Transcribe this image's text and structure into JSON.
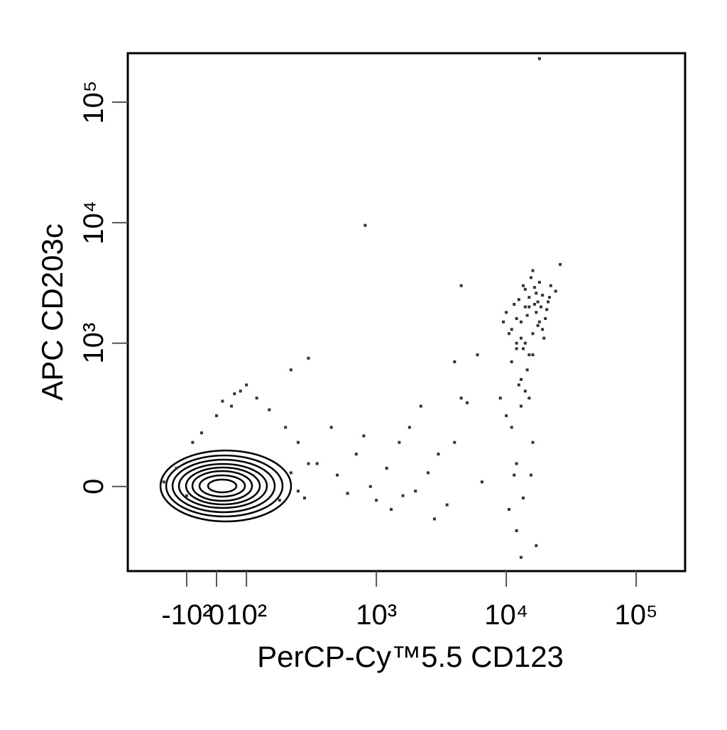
{
  "chart_data": {
    "type": "scatter",
    "x_label": "PerCP-Cy™5.5  CD123",
    "y_label": "APC  CD203c",
    "xscale": "biexponential",
    "yscale": "biexponential",
    "xlim": [
      -284,
      238000
    ],
    "ylim": [
      -325,
      255000
    ],
    "xticks": [
      {
        "value": -100,
        "label": "-10²"
      },
      0,
      {
        "value": 100,
        "label": "10²"
      },
      {
        "value": 1000,
        "label": "10³"
      },
      {
        "value": 10000,
        "label": "10⁴"
      },
      {
        "value": 100000,
        "label": "10⁵"
      }
    ],
    "yticks": [
      0,
      {
        "value": 1000,
        "label": "10³"
      },
      {
        "value": 10000,
        "label": "10⁴"
      },
      {
        "value": 100000,
        "label": "10⁵"
      }
    ],
    "color": "#333333",
    "x": [
      15000,
      17000,
      13000,
      19000,
      16000,
      12000,
      21000,
      14000,
      18000,
      11000,
      16500,
      20000,
      13500,
      17500,
      22000,
      10000,
      15500,
      19500,
      12500,
      24000,
      14500,
      18500,
      16000,
      26000,
      11500,
      17000,
      13000,
      15000,
      20500,
      9500,
      14000,
      18000,
      12000,
      16500,
      21500,
      10500,
      15000,
      19000,
      13500,
      17500,
      13000,
      11000,
      14000,
      12000,
      15000,
      10000,
      16000,
      11500,
      13500,
      12500,
      14500,
      10500,
      12000,
      15500,
      13000,
      11000,
      16000,
      9000,
      12000,
      14000,
      17000,
      13000,
      350,
      500,
      700,
      900,
      1200,
      1500,
      2000,
      2500,
      3000,
      1800,
      1000,
      600,
      2200,
      3500,
      4500,
      5000,
      6500,
      4000,
      800,
      1300,
      2800,
      450,
      1600,
      -150,
      -120,
      -80,
      -50,
      0,
      50,
      80,
      120,
      150,
      200,
      250,
      300,
      -100,
      180,
      250,
      100,
      60,
      20,
      220,
      280,
      820,
      18000,
      300,
      220,
      4500,
      4000,
      6000
    ],
    "y": [
      2000,
      1800,
      1500,
      2500,
      1200,
      1000,
      2200,
      2800,
      3200,
      1300,
      2100,
      1600,
      900,
      1400,
      3000,
      1800,
      3500,
      1100,
      2300,
      2700,
      1700,
      2000,
      4000,
      4500,
      2100,
      2600,
      1100,
      800,
      1900,
      1500,
      2000,
      1500,
      1600,
      2900,
      2400,
      1200,
      2400,
      1300,
      3000,
      2200,
      300,
      200,
      400,
      100,
      350,
      250,
      150,
      50,
      -50,
      450,
      600,
      -100,
      -150,
      50,
      500,
      700,
      800,
      350,
      900,
      1000,
      -200,
      -250,
      100,
      50,
      120,
      0,
      80,
      150,
      -20,
      60,
      120,
      200,
      -60,
      -30,
      300,
      -80,
      350,
      320,
      20,
      150,
      170,
      -100,
      -120,
      200,
      -40,
      20,
      80,
      150,
      180,
      250,
      300,
      400,
      350,
      280,
      200,
      150,
      100,
      -40,
      -60,
      -20,
      450,
      380,
      330,
      60,
      -50,
      9500,
      230000,
      750,
      600,
      3000,
      700,
      800
    ]
  }
}
